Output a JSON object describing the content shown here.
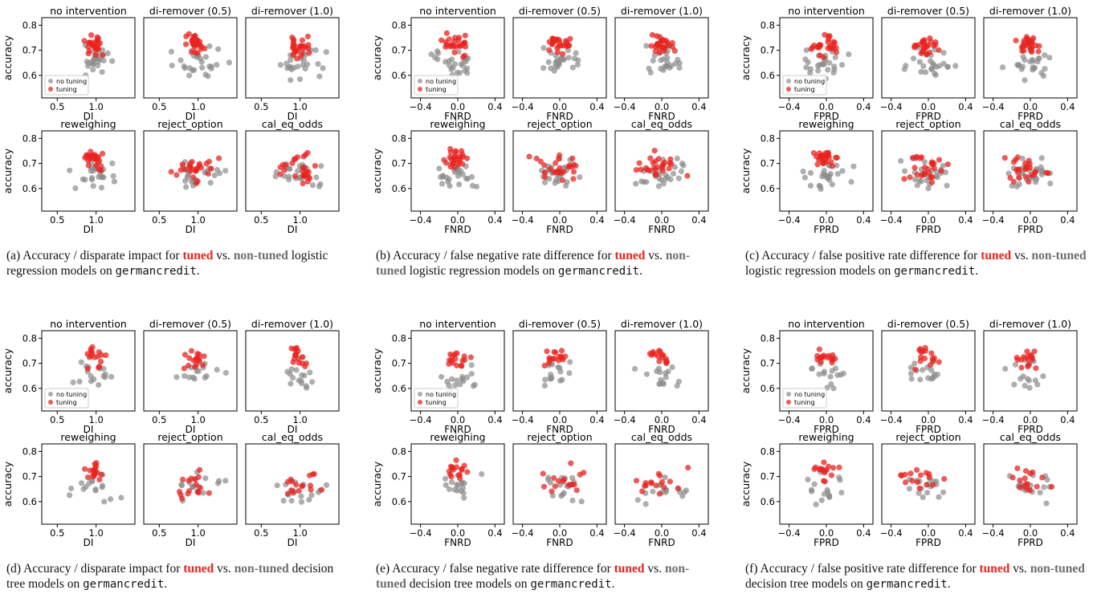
{
  "colors": {
    "tuned": "#e8231f",
    "no_tuning": "#8c8c8c"
  },
  "legend": {
    "no_tuning": "no tuning",
    "tuning": "tuning"
  },
  "ylabel": "accuracy",
  "yticks": [
    "0.6",
    "0.7",
    "0.8"
  ],
  "interventions": [
    "no intervention",
    "di-remover (0.5)",
    "di-remover (1.0)",
    "reweighing",
    "reject_option",
    "cal_eq_odds"
  ],
  "figures": [
    {
      "key": "a",
      "caption": {
        "prefix": "(a) Accuracy / disparate impact for ",
        "tuned": "tuned",
        "vs": " vs. ",
        "nontuned": "non-tuned",
        "rest": " logistic regression models on ",
        "dataset": "germancredit",
        "end": "."
      },
      "xlabel": "DI",
      "xticks": [
        "0.5",
        "1.0"
      ],
      "chart_data": {
        "type": "scatter",
        "xlabel": "DI",
        "ylabel": "accuracy",
        "xlim": [
          0.3,
          1.5
        ],
        "ylim": [
          0.51,
          0.83
        ],
        "legend": "lower-left",
        "series": [
          {
            "name": "no tuning"
          },
          {
            "name": "tuning"
          }
        ]
      }
    },
    {
      "key": "b",
      "caption": {
        "prefix": "(b) Accuracy / false negative rate difference for ",
        "tuned": "tuned",
        "vs": " vs. ",
        "nontuned": "non-tuned",
        "rest": " logistic regression models on ",
        "dataset": "germancredit",
        "end": "."
      },
      "xlabel": "FNRD",
      "xticks": [
        "−0.4",
        "0.0",
        "0.4"
      ],
      "chart_data": {
        "type": "scatter",
        "xlabel": "FNRD",
        "ylabel": "accuracy",
        "xlim": [
          -0.5,
          0.5
        ],
        "ylim": [
          0.51,
          0.83
        ],
        "legend": "lower-left",
        "series": [
          {
            "name": "no tuning"
          },
          {
            "name": "tuning"
          }
        ]
      }
    },
    {
      "key": "c",
      "caption": {
        "prefix": "(c) Accuracy / false positive rate difference for ",
        "tuned": "tuned",
        "vs": " vs. ",
        "nontuned": "non-tuned",
        "rest": " logistic regression models on ",
        "dataset": "germancredit",
        "end": "."
      },
      "xlabel": "FPRD",
      "xticks": [
        "−0.4",
        "0.0",
        "0.4"
      ],
      "chart_data": {
        "type": "scatter",
        "xlabel": "FPRD",
        "ylabel": "accuracy",
        "xlim": [
          -0.5,
          0.5
        ],
        "ylim": [
          0.51,
          0.83
        ],
        "legend": "lower-left",
        "series": [
          {
            "name": "no tuning"
          },
          {
            "name": "tuning"
          }
        ]
      }
    },
    {
      "key": "d",
      "caption": {
        "prefix": "(d) Accuracy / disparate impact for ",
        "tuned": "tuned",
        "vs": " vs. ",
        "nontuned": "non-tuned",
        "rest": " decision tree models on ",
        "dataset": "germancredit",
        "end": "."
      },
      "xlabel": "DI",
      "xticks": [
        "0.5",
        "1.0"
      ],
      "chart_data": {
        "type": "scatter",
        "xlabel": "DI",
        "ylabel": "accuracy",
        "xlim": [
          0.3,
          1.5
        ],
        "ylim": [
          0.51,
          0.83
        ],
        "legend": "lower-left",
        "series": [
          {
            "name": "no tuning"
          },
          {
            "name": "tuning"
          }
        ]
      }
    },
    {
      "key": "e",
      "caption": {
        "prefix": "(e) Accuracy / false negative rate difference for ",
        "tuned": "tuned",
        "vs": " vs. ",
        "nontuned": "non-tuned",
        "rest": " decision tree models on ",
        "dataset": "germancredit",
        "end": "."
      },
      "xlabel": "FNRD",
      "xticks": [
        "−0.4",
        "0.0",
        "0.4"
      ],
      "chart_data": {
        "type": "scatter",
        "xlabel": "FNRD",
        "ylabel": "accuracy",
        "xlim": [
          -0.5,
          0.5
        ],
        "ylim": [
          0.51,
          0.83
        ],
        "legend": "lower-left",
        "series": [
          {
            "name": "no tuning"
          },
          {
            "name": "tuning"
          }
        ]
      }
    },
    {
      "key": "f",
      "caption": {
        "prefix": "(f) Accuracy / false positive rate difference for ",
        "tuned": "tuned",
        "vs": " vs. ",
        "nontuned": "non-tuned",
        "rest": " decision tree models on ",
        "dataset": "germancredit",
        "end": "."
      },
      "xlabel": "FPRD",
      "xticks": [
        "−0.4",
        "0.0",
        "0.4"
      ],
      "chart_data": {
        "type": "scatter",
        "xlabel": "FPRD",
        "ylabel": "accuracy",
        "xlim": [
          -0.5,
          0.5
        ],
        "ylim": [
          0.51,
          0.83
        ],
        "legend": "lower-left",
        "series": [
          {
            "name": "no tuning"
          },
          {
            "name": "tuning"
          }
        ]
      }
    }
  ]
}
